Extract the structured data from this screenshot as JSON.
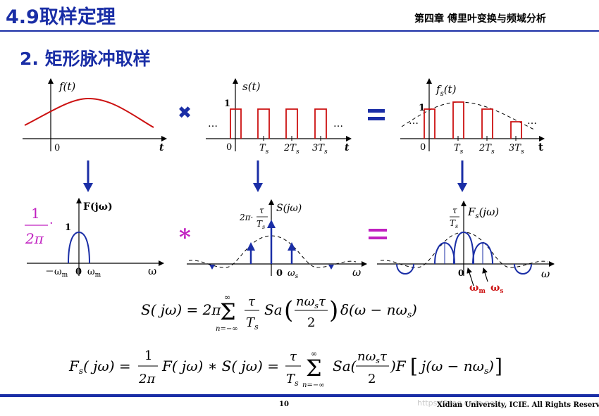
{
  "header": {
    "section_title": "4.9取样定理",
    "chapter": "第四章 傅里叶变换与频域分析"
  },
  "subtitle": "2. 矩形脉冲取样",
  "operators": {
    "multiply": "✖",
    "equals": "=",
    "convolve": "*"
  },
  "time_plots": {
    "f": {
      "label": "f(t)",
      "origin": "0",
      "t": "t"
    },
    "s": {
      "label": "s(t)",
      "amp": "1",
      "origin": "0",
      "ticks": [
        "T",
        "2T",
        "3T"
      ],
      "sub": "s",
      "ellipsis": "…",
      "t": "t"
    },
    "fs": {
      "label": "f",
      "label_sub": "s",
      "label_tail": "(t)",
      "amp": "1",
      "origin": "0",
      "ticks": [
        "T",
        "2T",
        "3T"
      ],
      "sub": "s",
      "ellipsis": "…",
      "t": "t"
    }
  },
  "freq_plots": {
    "F": {
      "label": "F(jω)",
      "scale_num": "1",
      "scale_den": "2π",
      "amp": "1",
      "ticks": [
        "－ω",
        "0",
        "ω"
      ],
      "tick_sub": "m",
      "axis": "ω"
    },
    "S": {
      "label": "S(jω)",
      "amp_pre": "2π·",
      "frac_num": "τ",
      "frac_den": "T",
      "den_sub": "s",
      "origin": "0",
      "ws": "ω",
      "ws_sub": "s",
      "axis": "ω"
    },
    "Fs": {
      "label": "F",
      "label_sub": "s",
      "label_tail": "(jω)",
      "frac_num": "τ",
      "frac_den": "T",
      "den_sub": "s",
      "origin": "0",
      "axis": "ω",
      "wm": "ω",
      "wm_sub": "m",
      "ws": "ω",
      "ws_sub": "s"
    }
  },
  "formulas": {
    "S": "S(jω) = 2π Σ τ/Tₛ Sa(nωₛτ/2) δ(ω − nωₛ), n = −∞ … ∞",
    "Fs": "Fₛ(jω) = 1/2π F(jω) * S(jω) = τ/Tₛ Σ Sa(nωₛτ/2) F[j(ω − nωₛ)], n = −∞ … ∞"
  },
  "footer": {
    "page": "10",
    "university": "Xidian University, ICIE. All Rights Reserved",
    "watermark": "https://blog.csdn.net/..."
  },
  "colors": {
    "title_blue": "#1a2ea6",
    "signal_red": "#cc1111",
    "arrow_blue": "#1a2ea6",
    "magenta": "#c020c0",
    "spectrum_blue": "#1a2ea6"
  }
}
